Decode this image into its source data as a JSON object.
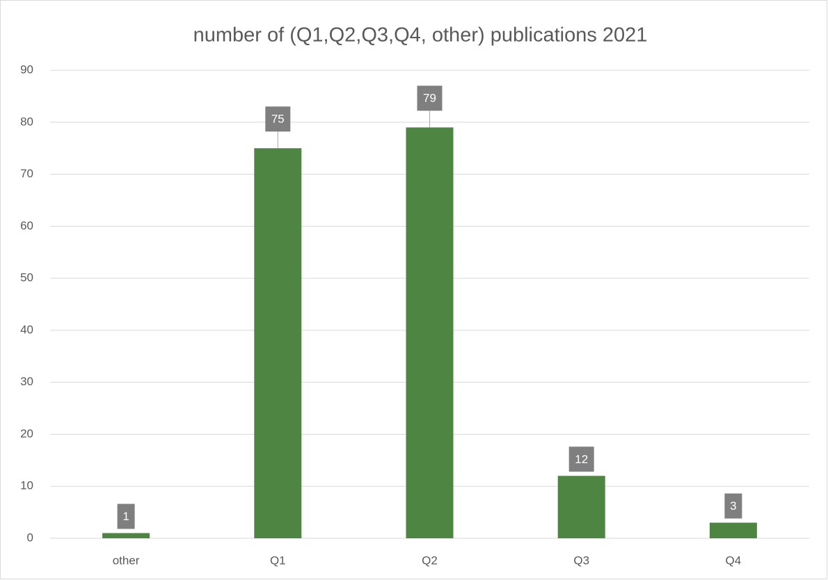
{
  "chart_data": {
    "type": "bar",
    "title": "number of (Q1,Q2,Q3,Q4, other) publications 2021",
    "categories": [
      "other",
      "Q1",
      "Q2",
      "Q3",
      "Q4"
    ],
    "values": [
      1,
      75,
      79,
      12,
      3
    ],
    "color": "#4e8542",
    "ylim": [
      0,
      90
    ],
    "yticks": [
      0,
      10,
      20,
      30,
      40,
      50,
      60,
      70,
      80,
      90
    ],
    "grid": true
  }
}
